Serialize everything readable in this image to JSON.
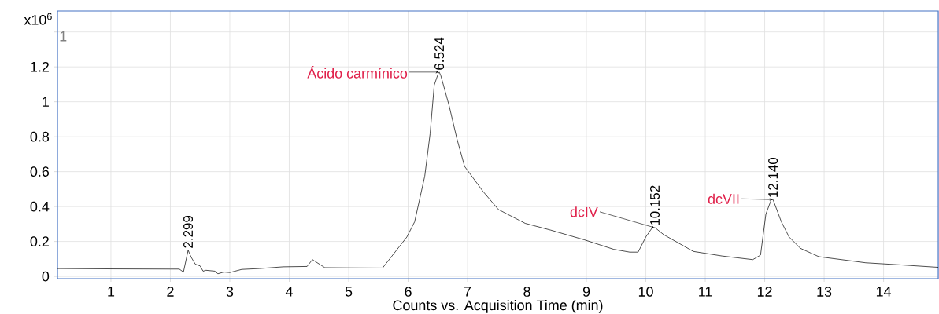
{
  "chart_data": {
    "type": "line",
    "xlabel": "Counts vs. Acquisition Time (min)",
    "xlim": [
      0.1,
      14.92
    ],
    "ylim": [
      -0.013,
      1.52
    ],
    "xticks": [
      1,
      2,
      3,
      4,
      5,
      6,
      7,
      8,
      9,
      10,
      11,
      12,
      13,
      14
    ],
    "yticks": [
      0,
      0.2,
      0.4,
      0.6,
      0.8,
      1,
      1.2,
      {
        "value": 1.4,
        "label": null
      }
    ],
    "grid": true,
    "marker": "none",
    "line_style": "solid",
    "series": [
      {
        "color": "#000000",
        "x": [
          0.1,
          1.0,
          2.0,
          2.15,
          2.22,
          2.299,
          2.35,
          2.42,
          2.5,
          2.55,
          2.6,
          2.75,
          2.8,
          2.9,
          3.0,
          3.2,
          3.5,
          3.9,
          4.3,
          4.39,
          4.6,
          5.0,
          5.57,
          5.98,
          6.11,
          6.28,
          6.37,
          6.44,
          6.51,
          6.524,
          6.55,
          6.69,
          6.82,
          6.95,
          7.26,
          7.52,
          7.97,
          8.4,
          8.97,
          9.46,
          9.73,
          9.87,
          10.0,
          10.1,
          10.152,
          10.3,
          10.8,
          11.28,
          11.8,
          11.93,
          12.02,
          12.11,
          12.14,
          12.28,
          12.41,
          12.6,
          12.91,
          13.7,
          14.33,
          14.92
        ],
        "values": [
          0.045,
          0.043,
          0.042,
          0.042,
          0.025,
          0.15,
          0.11,
          0.07,
          0.06,
          0.03,
          0.035,
          0.03,
          0.015,
          0.025,
          0.022,
          0.04,
          0.045,
          0.055,
          0.057,
          0.096,
          0.05,
          0.049,
          0.048,
          0.226,
          0.313,
          0.574,
          0.817,
          1.096,
          1.165,
          1.17,
          1.15,
          0.978,
          0.79,
          0.63,
          0.487,
          0.383,
          0.304,
          0.265,
          0.209,
          0.155,
          0.139,
          0.139,
          0.226,
          0.275,
          0.28,
          0.239,
          0.143,
          0.117,
          0.096,
          0.122,
          0.357,
          0.439,
          0.44,
          0.313,
          0.226,
          0.161,
          0.113,
          0.078,
          0.065,
          0.052
        ]
      }
    ],
    "annotations": [
      "x10$^{6}$",
      "1",
      {
        "text": "2.299",
        "x": 2.299,
        "y": 0.15
      },
      {
        "text": "6.524",
        "x": 6.524,
        "y": 1.17
      },
      {
        "text": "10.152",
        "x": 10.152,
        "y": 0.28
      },
      {
        "text": "12.140",
        "x": 12.14,
        "y": 0.44
      },
      {
        "text": "Ácido carmínico",
        "x": 6.524,
        "y": 1.17
      },
      {
        "text": "dcIV",
        "x": 10.152,
        "y": 0.28
      },
      {
        "text": "dcVII",
        "x": 12.14,
        "y": 0.44
      }
    ]
  }
}
